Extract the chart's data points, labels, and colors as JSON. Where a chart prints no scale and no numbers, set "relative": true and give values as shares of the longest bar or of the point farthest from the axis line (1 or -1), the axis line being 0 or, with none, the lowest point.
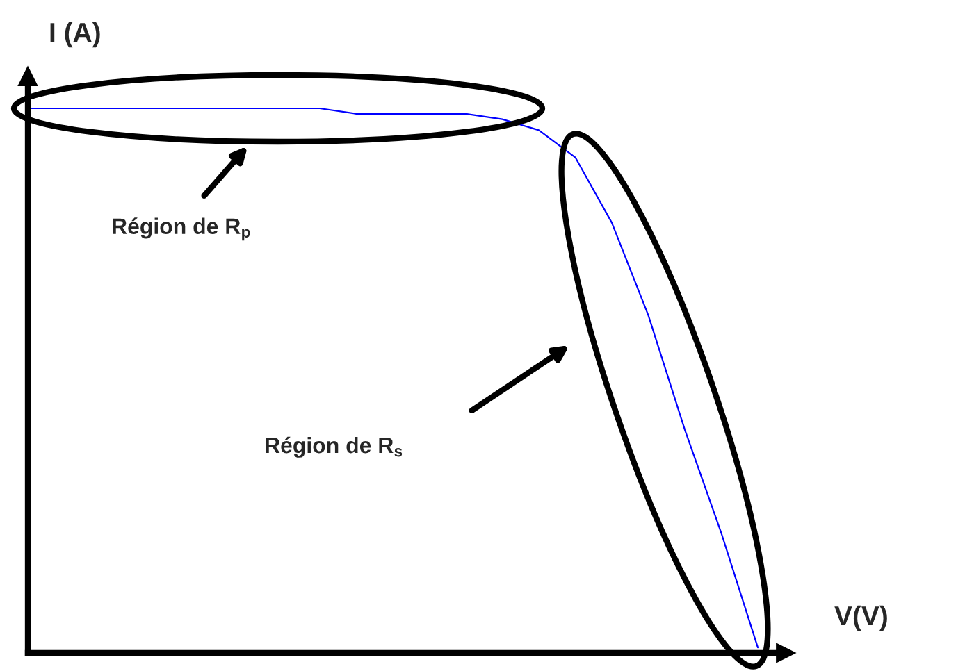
{
  "chart_data": {
    "type": "line",
    "relative": true,
    "xlabel": "V(V)",
    "ylabel": "I (A)",
    "color": "#0000ff",
    "categories": [
      null,
      null,
      null,
      null,
      null,
      null,
      null,
      null,
      null,
      null,
      null,
      null,
      null,
      null,
      null,
      null,
      null,
      null,
      null,
      null,
      null
    ],
    "values": [
      1,
      1,
      1,
      1,
      1,
      1,
      1,
      1,
      1,
      0.99,
      0.99,
      0.99,
      0.99,
      0.98,
      0.96,
      0.91,
      0.79,
      0.62,
      0.41,
      0.22,
      0.01
    ],
    "annotations": [
      "Région de R$_{p}$",
      "Région de R$_{s}$"
    ]
  }
}
